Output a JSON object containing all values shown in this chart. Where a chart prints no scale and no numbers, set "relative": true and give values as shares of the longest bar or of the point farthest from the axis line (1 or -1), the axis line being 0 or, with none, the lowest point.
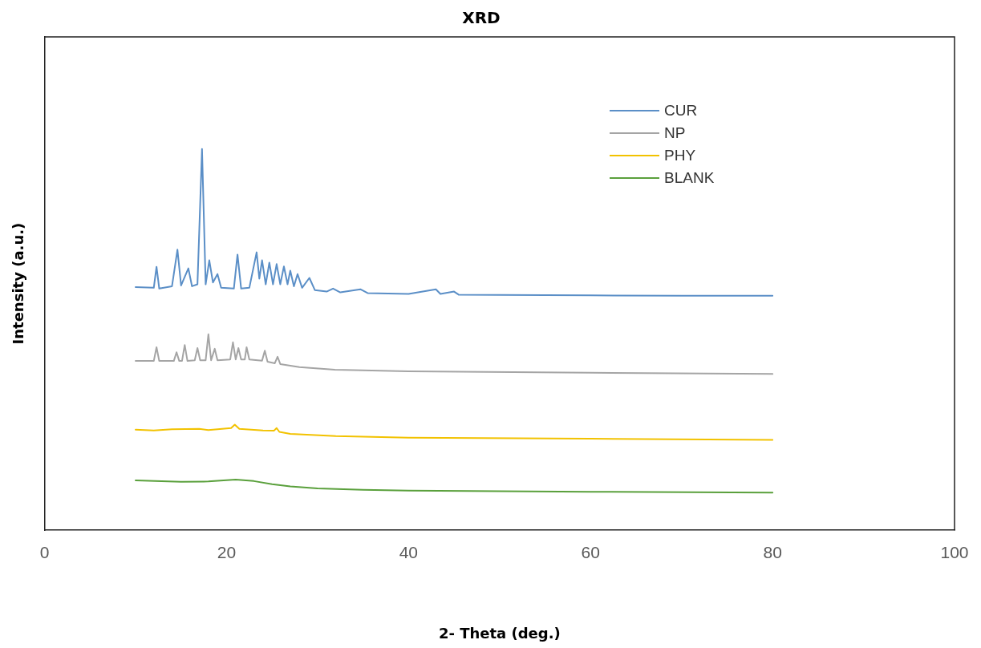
{
  "chart_data": {
    "type": "line",
    "title": "XRD",
    "xlabel": "2- Theta (deg.)",
    "ylabel": "Intensity (a.u.)",
    "relative": true,
    "xlim": [
      0,
      100
    ],
    "xticks": [
      0,
      20,
      40,
      60,
      80,
      100
    ],
    "grid": false,
    "legend": "top right",
    "marker": "none",
    "line_style": "solid",
    "series": [
      {
        "name": "CUR",
        "color": "#5b8fc7",
        "x": [
          10,
          12.0,
          12.3,
          12.6,
          14.0,
          14.6,
          15.0,
          15.8,
          16.2,
          16.8,
          17.3,
          17.7,
          18.1,
          18.5,
          19.0,
          19.4,
          20.8,
          21.2,
          21.6,
          22.5,
          23.3,
          23.6,
          23.9,
          24.3,
          24.7,
          25.1,
          25.5,
          25.9,
          26.3,
          26.7,
          27.0,
          27.4,
          27.8,
          28.3,
          29.1,
          29.7,
          31.0,
          31.7,
          32.5,
          34.7,
          35.5,
          40,
          43,
          43.5,
          45,
          45.5,
          50,
          60,
          70,
          80
        ],
        "values": [
          0.638,
          0.636,
          0.691,
          0.634,
          0.64,
          0.736,
          0.642,
          0.687,
          0.64,
          0.645,
          1,
          0.645,
          0.708,
          0.65,
          0.672,
          0.636,
          0.634,
          0.723,
          0.634,
          0.636,
          0.729,
          0.66,
          0.708,
          0.645,
          0.702,
          0.645,
          0.698,
          0.645,
          0.692,
          0.645,
          0.681,
          0.64,
          0.672,
          0.636,
          0.662,
          0.63,
          0.626,
          0.634,
          0.624,
          0.632,
          0.622,
          0.62,
          0.632,
          0.62,
          0.626,
          0.618,
          0.617,
          0.616,
          0.615,
          0.615
        ]
      },
      {
        "name": "NP",
        "color": "#a5a5a5",
        "x": [
          10,
          12.0,
          12.3,
          12.6,
          14.2,
          14.5,
          14.8,
          15.1,
          15.4,
          15.7,
          16.5,
          16.8,
          17.1,
          17.7,
          18.0,
          18.3,
          18.7,
          19.0,
          20.4,
          20.7,
          21.0,
          21.3,
          21.6,
          22.0,
          22.2,
          22.5,
          23.9,
          24.2,
          24.5,
          25.3,
          25.6,
          25.9,
          28,
          31.9,
          40,
          60,
          80
        ],
        "values": [
          0.444,
          0.444,
          0.48,
          0.444,
          0.444,
          0.467,
          0.444,
          0.444,
          0.486,
          0.444,
          0.446,
          0.478,
          0.446,
          0.446,
          0.514,
          0.446,
          0.476,
          0.446,
          0.448,
          0.493,
          0.448,
          0.478,
          0.448,
          0.448,
          0.48,
          0.448,
          0.445,
          0.471,
          0.442,
          0.438,
          0.455,
          0.436,
          0.428,
          0.421,
          0.417,
          0.413,
          0.41
        ]
      },
      {
        "name": "PHY",
        "color": "#f2c200",
        "x": [
          10,
          12,
          14,
          17,
          18,
          20.5,
          20.9,
          21.4,
          24,
          25.2,
          25.5,
          25.8,
          27,
          32,
          40,
          60,
          80
        ],
        "values": [
          0.264,
          0.262,
          0.265,
          0.266,
          0.263,
          0.268,
          0.277,
          0.266,
          0.262,
          0.261,
          0.268,
          0.258,
          0.253,
          0.247,
          0.243,
          0.24,
          0.237
        ]
      },
      {
        "name": "BLANK",
        "color": "#5aa03c",
        "x": [
          10,
          15,
          18,
          21,
          23,
          25,
          27,
          30,
          35,
          40,
          60,
          80
        ],
        "values": [
          0.131,
          0.127,
          0.128,
          0.133,
          0.129,
          0.121,
          0.115,
          0.11,
          0.106,
          0.104,
          0.101,
          0.099
        ]
      }
    ]
  }
}
